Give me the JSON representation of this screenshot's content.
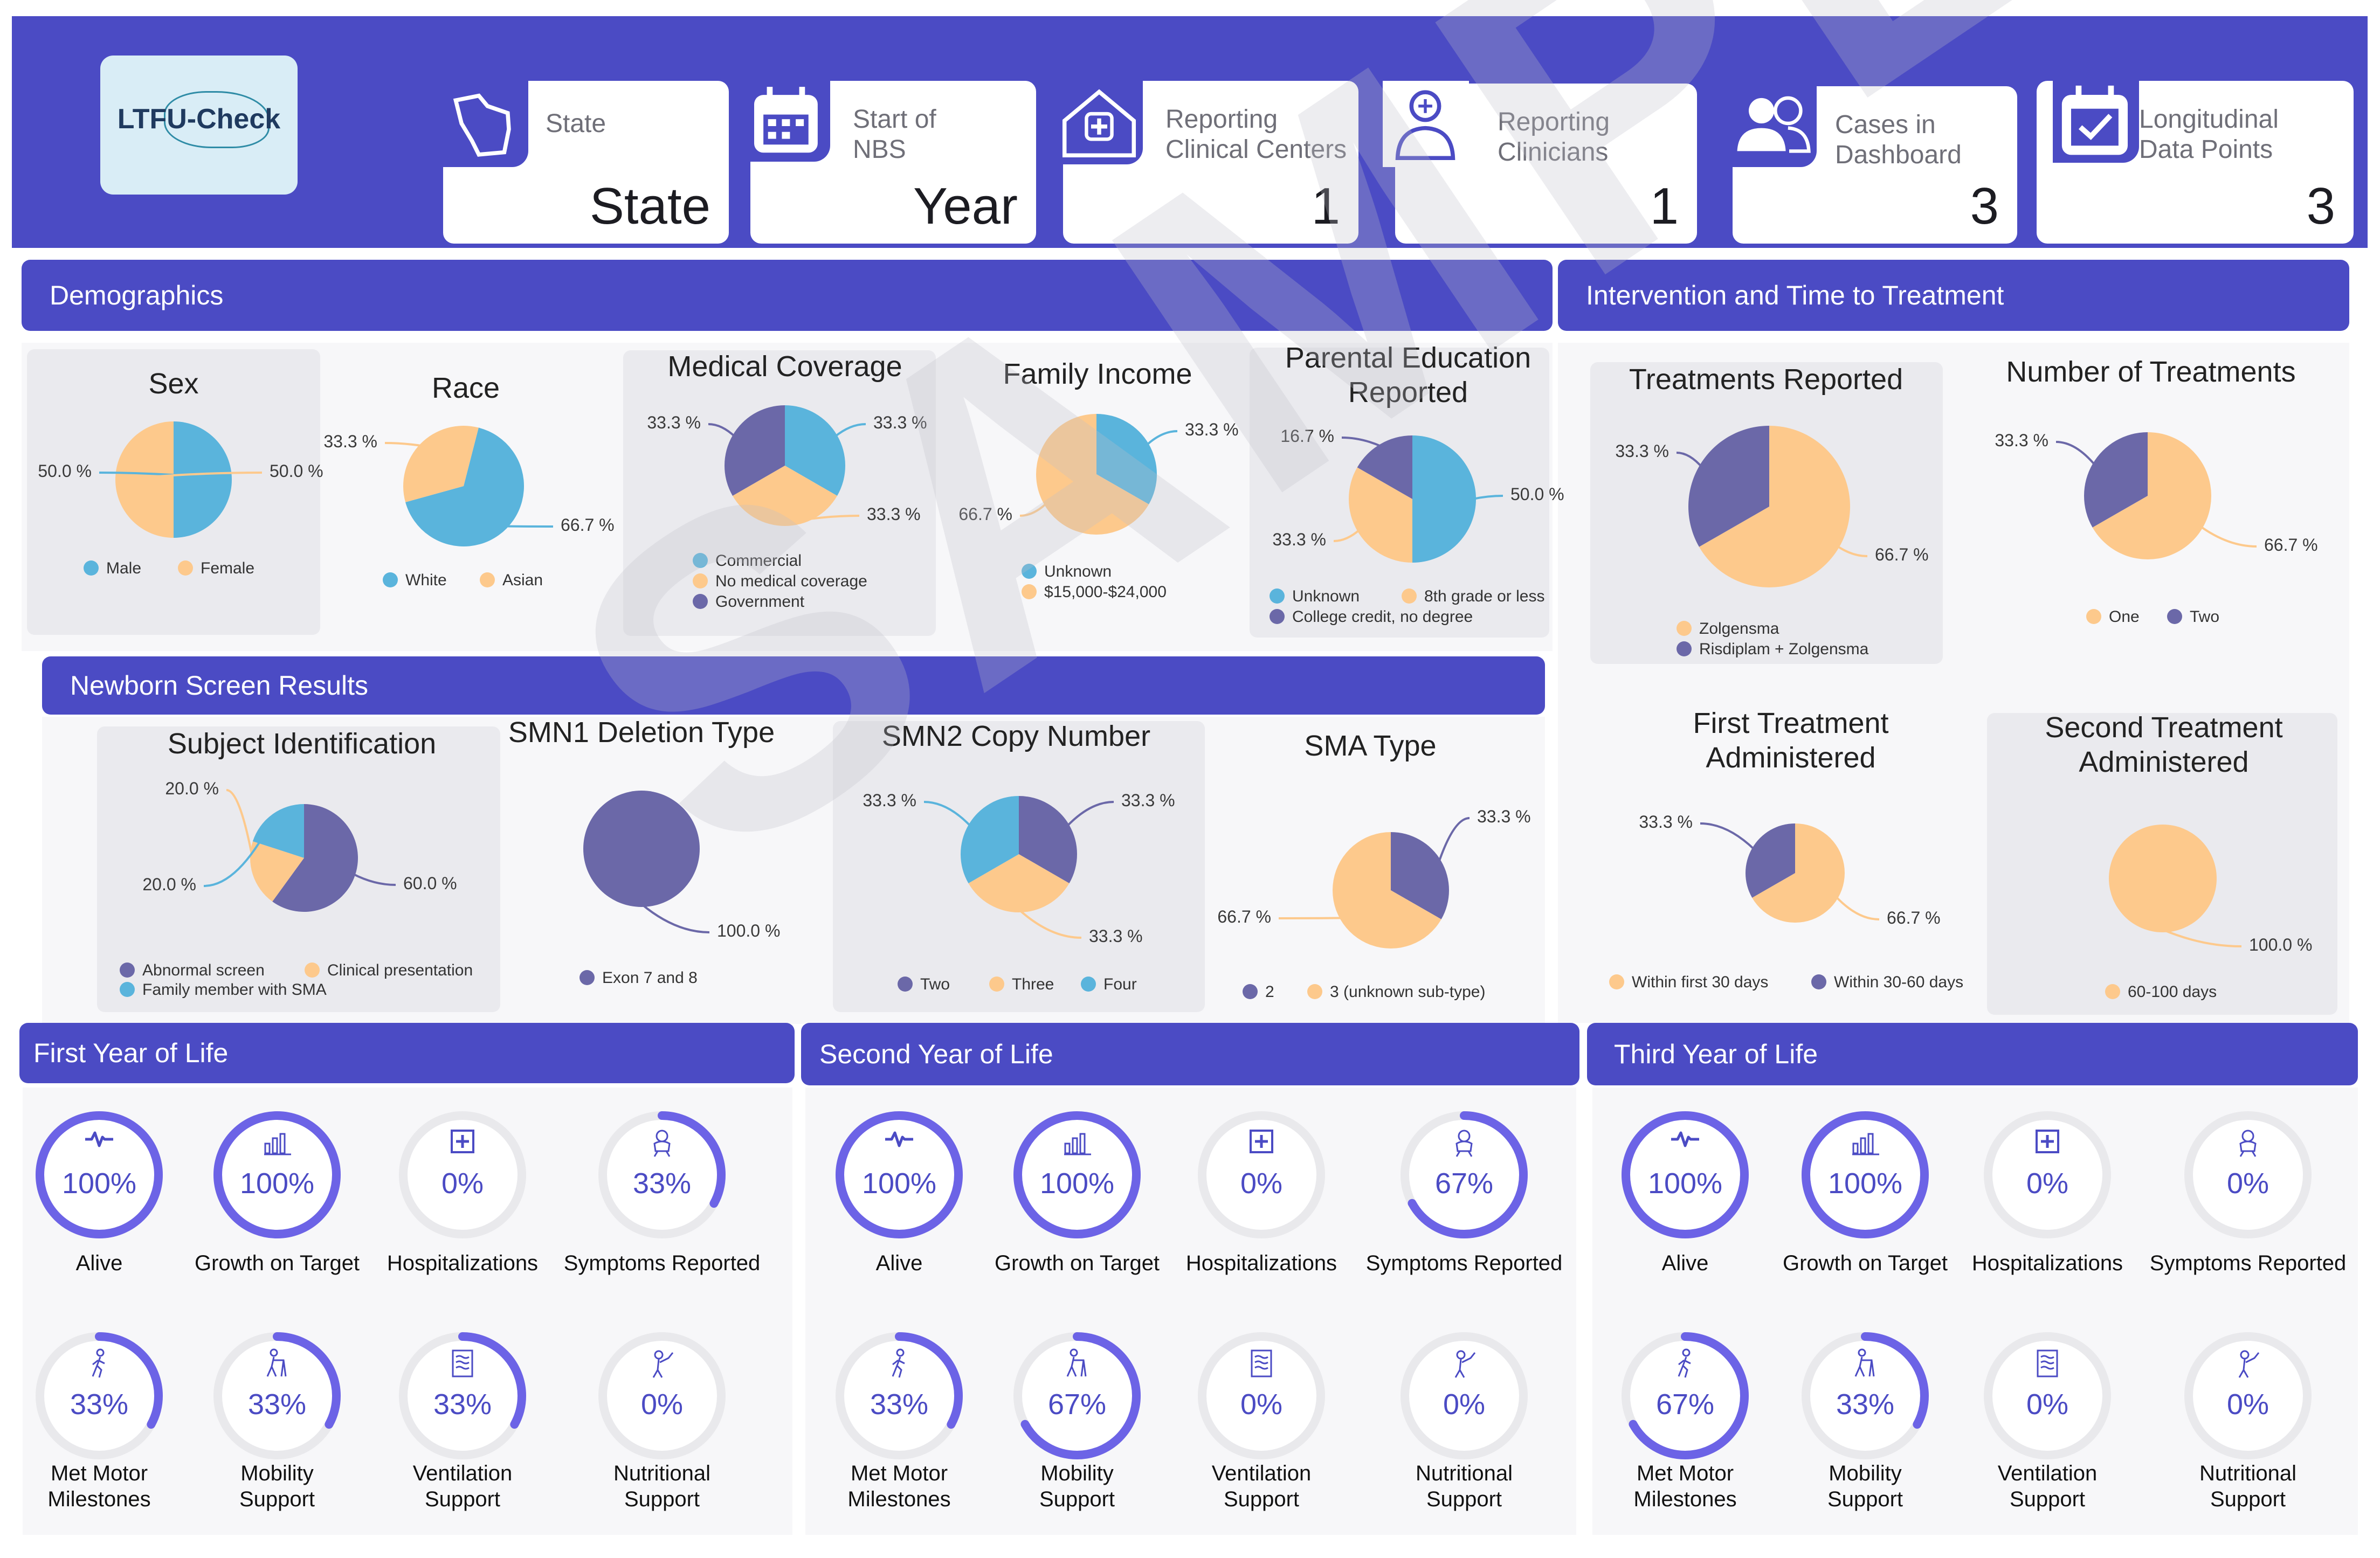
{
  "header": {
    "logo_text": "LTFU-Check",
    "cards": [
      {
        "label1": "State",
        "label2": "",
        "value": "State",
        "icon": "wisconsin-state-icon"
      },
      {
        "label1": "Start of",
        "label2": "NBS",
        "value": "Year",
        "icon": "calendar-icon"
      },
      {
        "label1": "Reporting",
        "label2": "Clinical Centers",
        "value": "1",
        "icon": "hospital-icon"
      },
      {
        "label1": "Reporting",
        "label2": "Clinicians",
        "value": "1",
        "icon": "doctor-icon"
      },
      {
        "label1": "Cases in",
        "label2": "Dashboard",
        "value": "3",
        "icon": "users-icon"
      },
      {
        "label1": "Longitudinal",
        "label2": "Data Points",
        "value": "3",
        "icon": "calendar-check-icon"
      }
    ]
  },
  "sections": {
    "demographics": "Demographics",
    "intervention": "Intervention and Time to Treatment",
    "newborn": "Newborn Screen Results",
    "year1": "First Year of Life",
    "year2": "Second Year of Life",
    "year3": "Third Year of Life"
  },
  "watermark": "SAMPLE",
  "colors": {
    "blue": "#5ab4dc",
    "orange": "#fdc98c",
    "purple": "#6b68a8",
    "accent": "#4b4bc4",
    "ring": "#6c63e6",
    "track": "#e9e9ec"
  },
  "chart_data": [
    {
      "id": "sex",
      "type": "pie",
      "title": "Sex",
      "slices": [
        {
          "label": "Male",
          "value": 50.0,
          "color": "blue"
        },
        {
          "label": "Female",
          "value": 50.0,
          "color": "orange"
        }
      ],
      "data_labels": [
        "50.0 %",
        "50.0 %"
      ],
      "legend": [
        "Male",
        "Female"
      ]
    },
    {
      "id": "race",
      "type": "pie",
      "title": "Race",
      "slices": [
        {
          "label": "White",
          "value": 66.7,
          "color": "blue"
        },
        {
          "label": "Asian",
          "value": 33.3,
          "color": "orange"
        }
      ],
      "data_labels": [
        "66.7 %",
        "33.3 %"
      ],
      "legend": [
        "White",
        "Asian"
      ]
    },
    {
      "id": "coverage",
      "type": "pie",
      "title": "Medical Coverage",
      "slices": [
        {
          "label": "Commercial",
          "value": 33.3,
          "color": "blue"
        },
        {
          "label": "No medical coverage",
          "value": 33.3,
          "color": "orange"
        },
        {
          "label": "Government",
          "value": 33.3,
          "color": "purple"
        }
      ],
      "data_labels": [
        "33.3 %",
        "33.3 %",
        "33.3 %"
      ],
      "legend": [
        "Commercial",
        "No medical coverage",
        "Government"
      ]
    },
    {
      "id": "income",
      "type": "pie",
      "title": "Family Income",
      "slices": [
        {
          "label": "Unknown",
          "value": 33.3,
          "color": "blue"
        },
        {
          "label": "$15,000-$24,000",
          "value": 66.7,
          "color": "orange"
        }
      ],
      "data_labels": [
        "33.3 %",
        "66.7 %"
      ],
      "legend": [
        "Unknown",
        "$15,000-$24,000"
      ]
    },
    {
      "id": "education",
      "type": "pie",
      "title": "Parental Education Reported",
      "slices": [
        {
          "label": "Unknown",
          "value": 50.0,
          "color": "blue"
        },
        {
          "label": "8th grade or less",
          "value": 33.3,
          "color": "orange"
        },
        {
          "label": "College credit, no degree",
          "value": 16.7,
          "color": "purple"
        }
      ],
      "data_labels": [
        "50.0 %",
        "33.3 %",
        "16.7 %"
      ],
      "legend": [
        "Unknown",
        "8th grade or less",
        "College credit, no degree"
      ]
    },
    {
      "id": "treatments",
      "type": "pie",
      "title": "Treatments Reported",
      "slices": [
        {
          "label": "Zolgensma",
          "value": 66.7,
          "color": "orange"
        },
        {
          "label": "Risdiplam + Zolgensma",
          "value": 33.3,
          "color": "purple"
        }
      ],
      "data_labels": [
        "66.7 %",
        "33.3 %"
      ],
      "legend": [
        "Zolgensma",
        "Risdiplam + Zolgensma"
      ]
    },
    {
      "id": "numtreat",
      "type": "pie",
      "title": "Number of Treatments",
      "slices": [
        {
          "label": "One",
          "value": 66.7,
          "color": "orange"
        },
        {
          "label": "Two",
          "value": 33.3,
          "color": "purple"
        }
      ],
      "data_labels": [
        "66.7 %",
        "33.3 %"
      ],
      "legend": [
        "One",
        "Two"
      ]
    },
    {
      "id": "subject",
      "type": "pie",
      "title": "Subject Identification",
      "slices": [
        {
          "label": "Abnormal screen",
          "value": 60.0,
          "color": "purple"
        },
        {
          "label": "Clinical presentation",
          "value": 20.0,
          "color": "orange"
        },
        {
          "label": "Family member with SMA",
          "value": 20.0,
          "color": "blue"
        }
      ],
      "data_labels": [
        "60.0 %",
        "20.0 %",
        "20.0 %"
      ],
      "legend": [
        "Abnormal screen",
        "Clinical presentation",
        "Family member with SMA"
      ]
    },
    {
      "id": "smn1",
      "type": "pie",
      "title": "SMN1 Deletion Type",
      "slices": [
        {
          "label": "Exon 7 and 8",
          "value": 100.0,
          "color": "purple"
        }
      ],
      "data_labels": [
        "100.0 %"
      ],
      "legend": [
        "Exon 7 and 8"
      ]
    },
    {
      "id": "smn2",
      "type": "pie",
      "title": "SMN2 Copy Number",
      "slices": [
        {
          "label": "Two",
          "value": 33.3,
          "color": "purple"
        },
        {
          "label": "Three",
          "value": 33.3,
          "color": "orange"
        },
        {
          "label": "Four",
          "value": 33.3,
          "color": "blue"
        }
      ],
      "data_labels": [
        "33.3 %",
        "33.3 %",
        "33.3 %"
      ],
      "legend": [
        "Two",
        "Three",
        "Four"
      ]
    },
    {
      "id": "smatype",
      "type": "pie",
      "title": "SMA Type",
      "slices": [
        {
          "label": "2",
          "value": 33.3,
          "color": "purple"
        },
        {
          "label": "3 (unknown sub-type)",
          "value": 66.7,
          "color": "orange"
        }
      ],
      "data_labels": [
        "33.3 %",
        "66.7 %"
      ],
      "legend": [
        "2",
        "3 (unknown sub-type)"
      ]
    },
    {
      "id": "first",
      "type": "pie",
      "title": "First Treatment Administered",
      "slices": [
        {
          "label": "Within first 30 days",
          "value": 66.7,
          "color": "orange"
        },
        {
          "label": "Within 30-60 days",
          "value": 33.3,
          "color": "purple"
        }
      ],
      "data_labels": [
        "66.7 %",
        "33.3 %"
      ],
      "legend": [
        "Within first 30 days",
        "Within 30-60 days"
      ]
    },
    {
      "id": "second",
      "type": "pie",
      "title": "Second Treatment Administered",
      "slices": [
        {
          "label": "60-100 days",
          "value": 100.0,
          "color": "orange"
        }
      ],
      "data_labels": [
        "100.0 %"
      ],
      "legend": [
        "60-100 days"
      ]
    }
  ],
  "years": [
    {
      "tiles": [
        {
          "label": "Alive",
          "value": 100,
          "text": "100%",
          "icon": "heartbeat-icon"
        },
        {
          "label": "Growth on Target",
          "value": 100,
          "text": "100%",
          "icon": "growth-chart-icon"
        },
        {
          "label": "Hospitalizations",
          "value": 0,
          "text": "0%",
          "icon": "hospital-cross-icon"
        },
        {
          "label": "Symptoms Reported",
          "value": 33,
          "text": "33%",
          "icon": "baby-icon"
        },
        {
          "label": "Met Motor Milestones",
          "value": 33,
          "text": "33%",
          "icon": "walking-icon"
        },
        {
          "label": "Mobility Support",
          "value": 33,
          "text": "33%",
          "icon": "walker-icon"
        },
        {
          "label": "Ventilation Support",
          "value": 33,
          "text": "33%",
          "icon": "ventilator-icon"
        },
        {
          "label": "Nutritional Support",
          "value": 0,
          "text": "0%",
          "icon": "feeding-icon"
        }
      ]
    },
    {
      "tiles": [
        {
          "label": "Alive",
          "value": 100,
          "text": "100%",
          "icon": "heartbeat-icon"
        },
        {
          "label": "Growth on Target",
          "value": 100,
          "text": "100%",
          "icon": "growth-chart-icon"
        },
        {
          "label": "Hospitalizations",
          "value": 0,
          "text": "0%",
          "icon": "hospital-cross-icon"
        },
        {
          "label": "Symptoms Reported",
          "value": 67,
          "text": "67%",
          "icon": "baby-icon"
        },
        {
          "label": "Met Motor Milestones",
          "value": 33,
          "text": "33%",
          "icon": "walking-icon"
        },
        {
          "label": "Mobility Support",
          "value": 67,
          "text": "67%",
          "icon": "walker-icon"
        },
        {
          "label": "Ventilation Support",
          "value": 0,
          "text": "0%",
          "icon": "ventilator-icon"
        },
        {
          "label": "Nutritional Support",
          "value": 0,
          "text": "0%",
          "icon": "feeding-icon"
        }
      ]
    },
    {
      "tiles": [
        {
          "label": "Alive",
          "value": 100,
          "text": "100%",
          "icon": "heartbeat-icon"
        },
        {
          "label": "Growth on Target",
          "value": 100,
          "text": "100%",
          "icon": "growth-chart-icon"
        },
        {
          "label": "Hospitalizations",
          "value": 0,
          "text": "0%",
          "icon": "hospital-cross-icon"
        },
        {
          "label": "Symptoms Reported",
          "value": 0,
          "text": "0%",
          "icon": "baby-icon"
        },
        {
          "label": "Met Motor Milestones",
          "value": 67,
          "text": "67%",
          "icon": "walking-icon"
        },
        {
          "label": "Mobility Support",
          "value": 33,
          "text": "33%",
          "icon": "walker-icon"
        },
        {
          "label": "Ventilation Support",
          "value": 0,
          "text": "0%",
          "icon": "ventilator-icon"
        },
        {
          "label": "Nutritional Support",
          "value": 0,
          "text": "0%",
          "icon": "feeding-icon"
        }
      ]
    }
  ]
}
